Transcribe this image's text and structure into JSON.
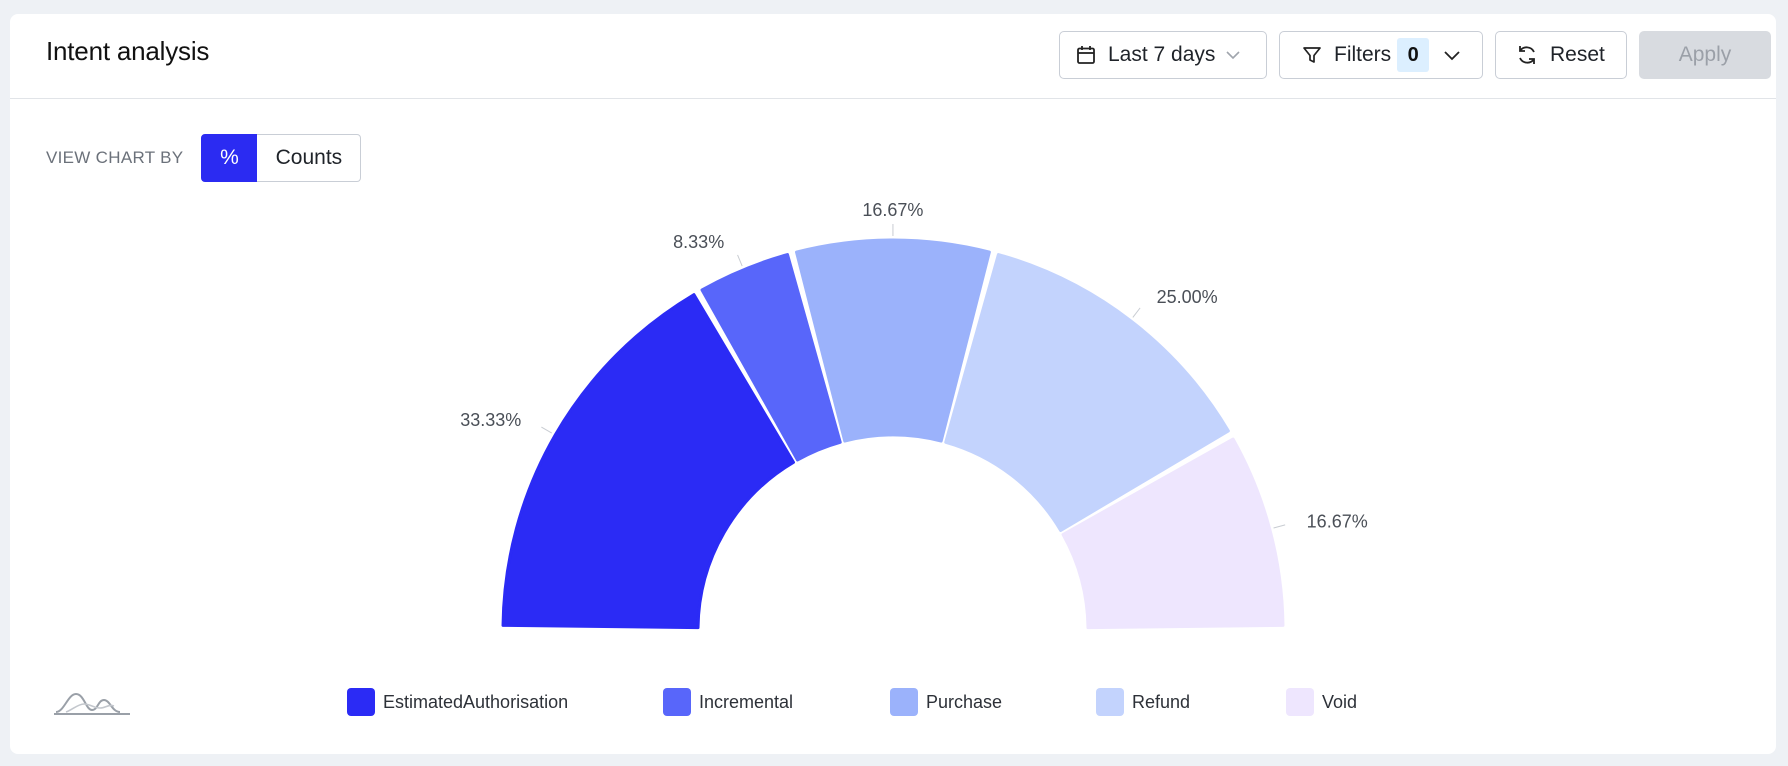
{
  "header": {
    "title": "Intent analysis",
    "date_range_label": "Last 7 days",
    "filters_label": "Filters",
    "filters_count": "0",
    "reset_label": "Reset",
    "apply_label": "Apply"
  },
  "view_chart_by": {
    "label": "VIEW CHART BY",
    "options": [
      "%",
      "Counts"
    ],
    "selected": "%"
  },
  "chart_data": {
    "type": "pie",
    "variant": "half-donut",
    "categories": [
      "EstimatedAuthorisation",
      "Incremental",
      "Purchase",
      "Refund",
      "Void"
    ],
    "values": [
      33.33,
      8.33,
      16.67,
      25.0,
      16.67
    ],
    "value_labels": [
      "33.33%",
      "8.33%",
      "16.67%",
      "25.00%",
      "16.67%"
    ],
    "colors": [
      "#2b2bf5",
      "#5866fa",
      "#9bb2fb",
      "#c3d3fd",
      "#eee6fe"
    ],
    "legend_position": "bottom"
  },
  "icons": {
    "date": "calendar-icon",
    "filter": "funnel-icon",
    "reset": "refresh-icon",
    "chevron": "chevron-down-icon",
    "logo": "wave-logo-icon"
  }
}
